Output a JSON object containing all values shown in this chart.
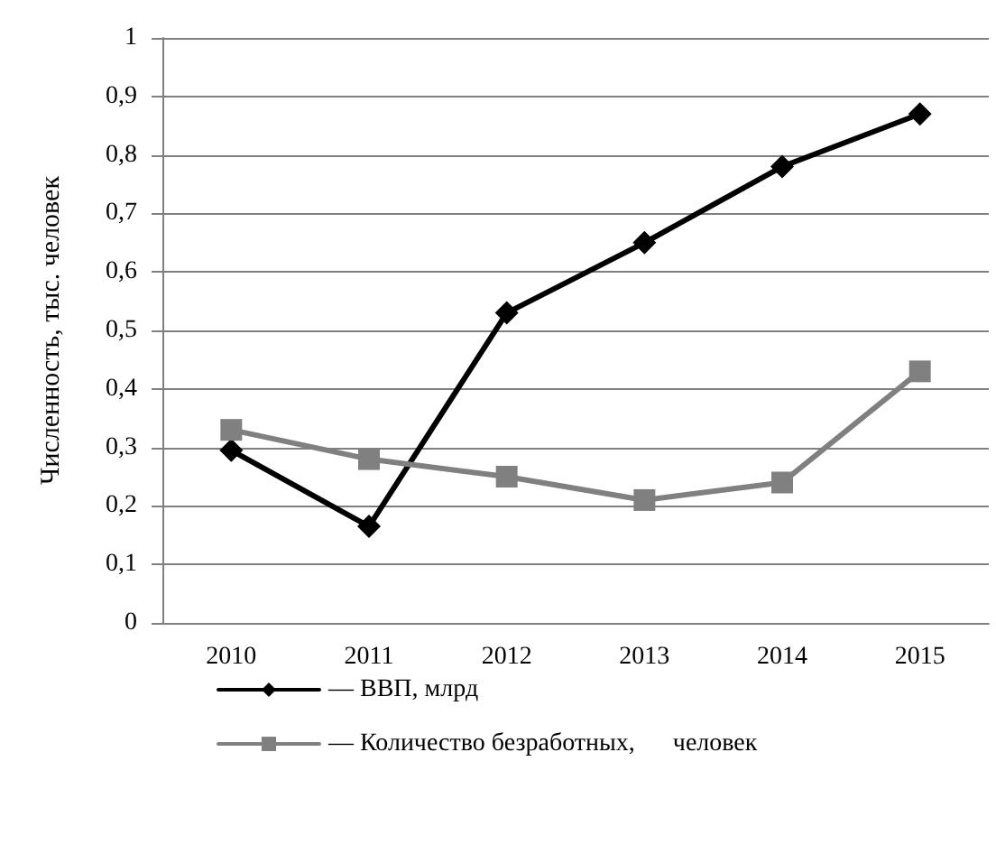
{
  "chart_data": {
    "type": "line",
    "ylabel": "Численность, тыс. человек",
    "categories": [
      "2010",
      "2011",
      "2012",
      "2013",
      "2014",
      "2015"
    ],
    "series": [
      {
        "name": "— ВВП, млрд",
        "color": "#000000",
        "marker": "diamond",
        "values": [
          0.295,
          0.165,
          0.53,
          0.65,
          0.78,
          0.87
        ]
      },
      {
        "name": "— Количество безработных,      человек",
        "color": "#808080",
        "marker": "square",
        "values": [
          0.33,
          0.28,
          0.25,
          0.21,
          0.24,
          0.43
        ]
      }
    ],
    "ylim": [
      0,
      1
    ],
    "yticks": [
      0,
      {
        "value": 0.1,
        "label": "0,1"
      },
      {
        "value": 0.2,
        "label": "0,2"
      },
      {
        "value": 0.3,
        "label": "0,3"
      },
      {
        "value": 0.4,
        "label": "0,4"
      },
      {
        "value": 0.5,
        "label": "0,5"
      },
      {
        "value": 0.6,
        "label": "0,6"
      },
      {
        "value": 0.7,
        "label": "0,7"
      },
      {
        "value": 0.8,
        "label": "0,8"
      },
      {
        "value": 0.9,
        "label": "0,9"
      },
      1
    ],
    "grid": "y",
    "legend": "bottom",
    "line_style": "solid"
  }
}
